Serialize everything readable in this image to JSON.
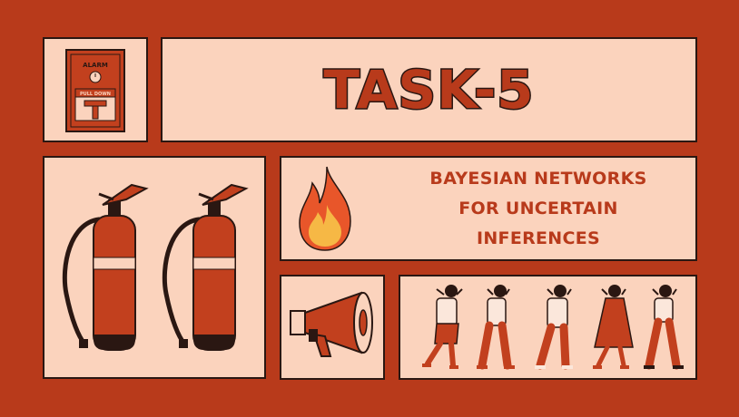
{
  "title": "TASK-5",
  "subtitle_lines": [
    "BAYESIAN NETWORKS",
    "FOR UNCERTAIN",
    "INFERENCES"
  ],
  "alarm": {
    "top_label": "ALARM",
    "bottom_label": "PULL DOWN"
  },
  "colors": {
    "background": "#b83a1b",
    "panel": "#fbd3bd",
    "outline": "#2a1712",
    "accent": "#b83a1b"
  },
  "icons": [
    "fire-alarm-icon",
    "fire-extinguisher-icon",
    "flame-icon",
    "megaphone-icon",
    "evacuating-people-illustration"
  ]
}
